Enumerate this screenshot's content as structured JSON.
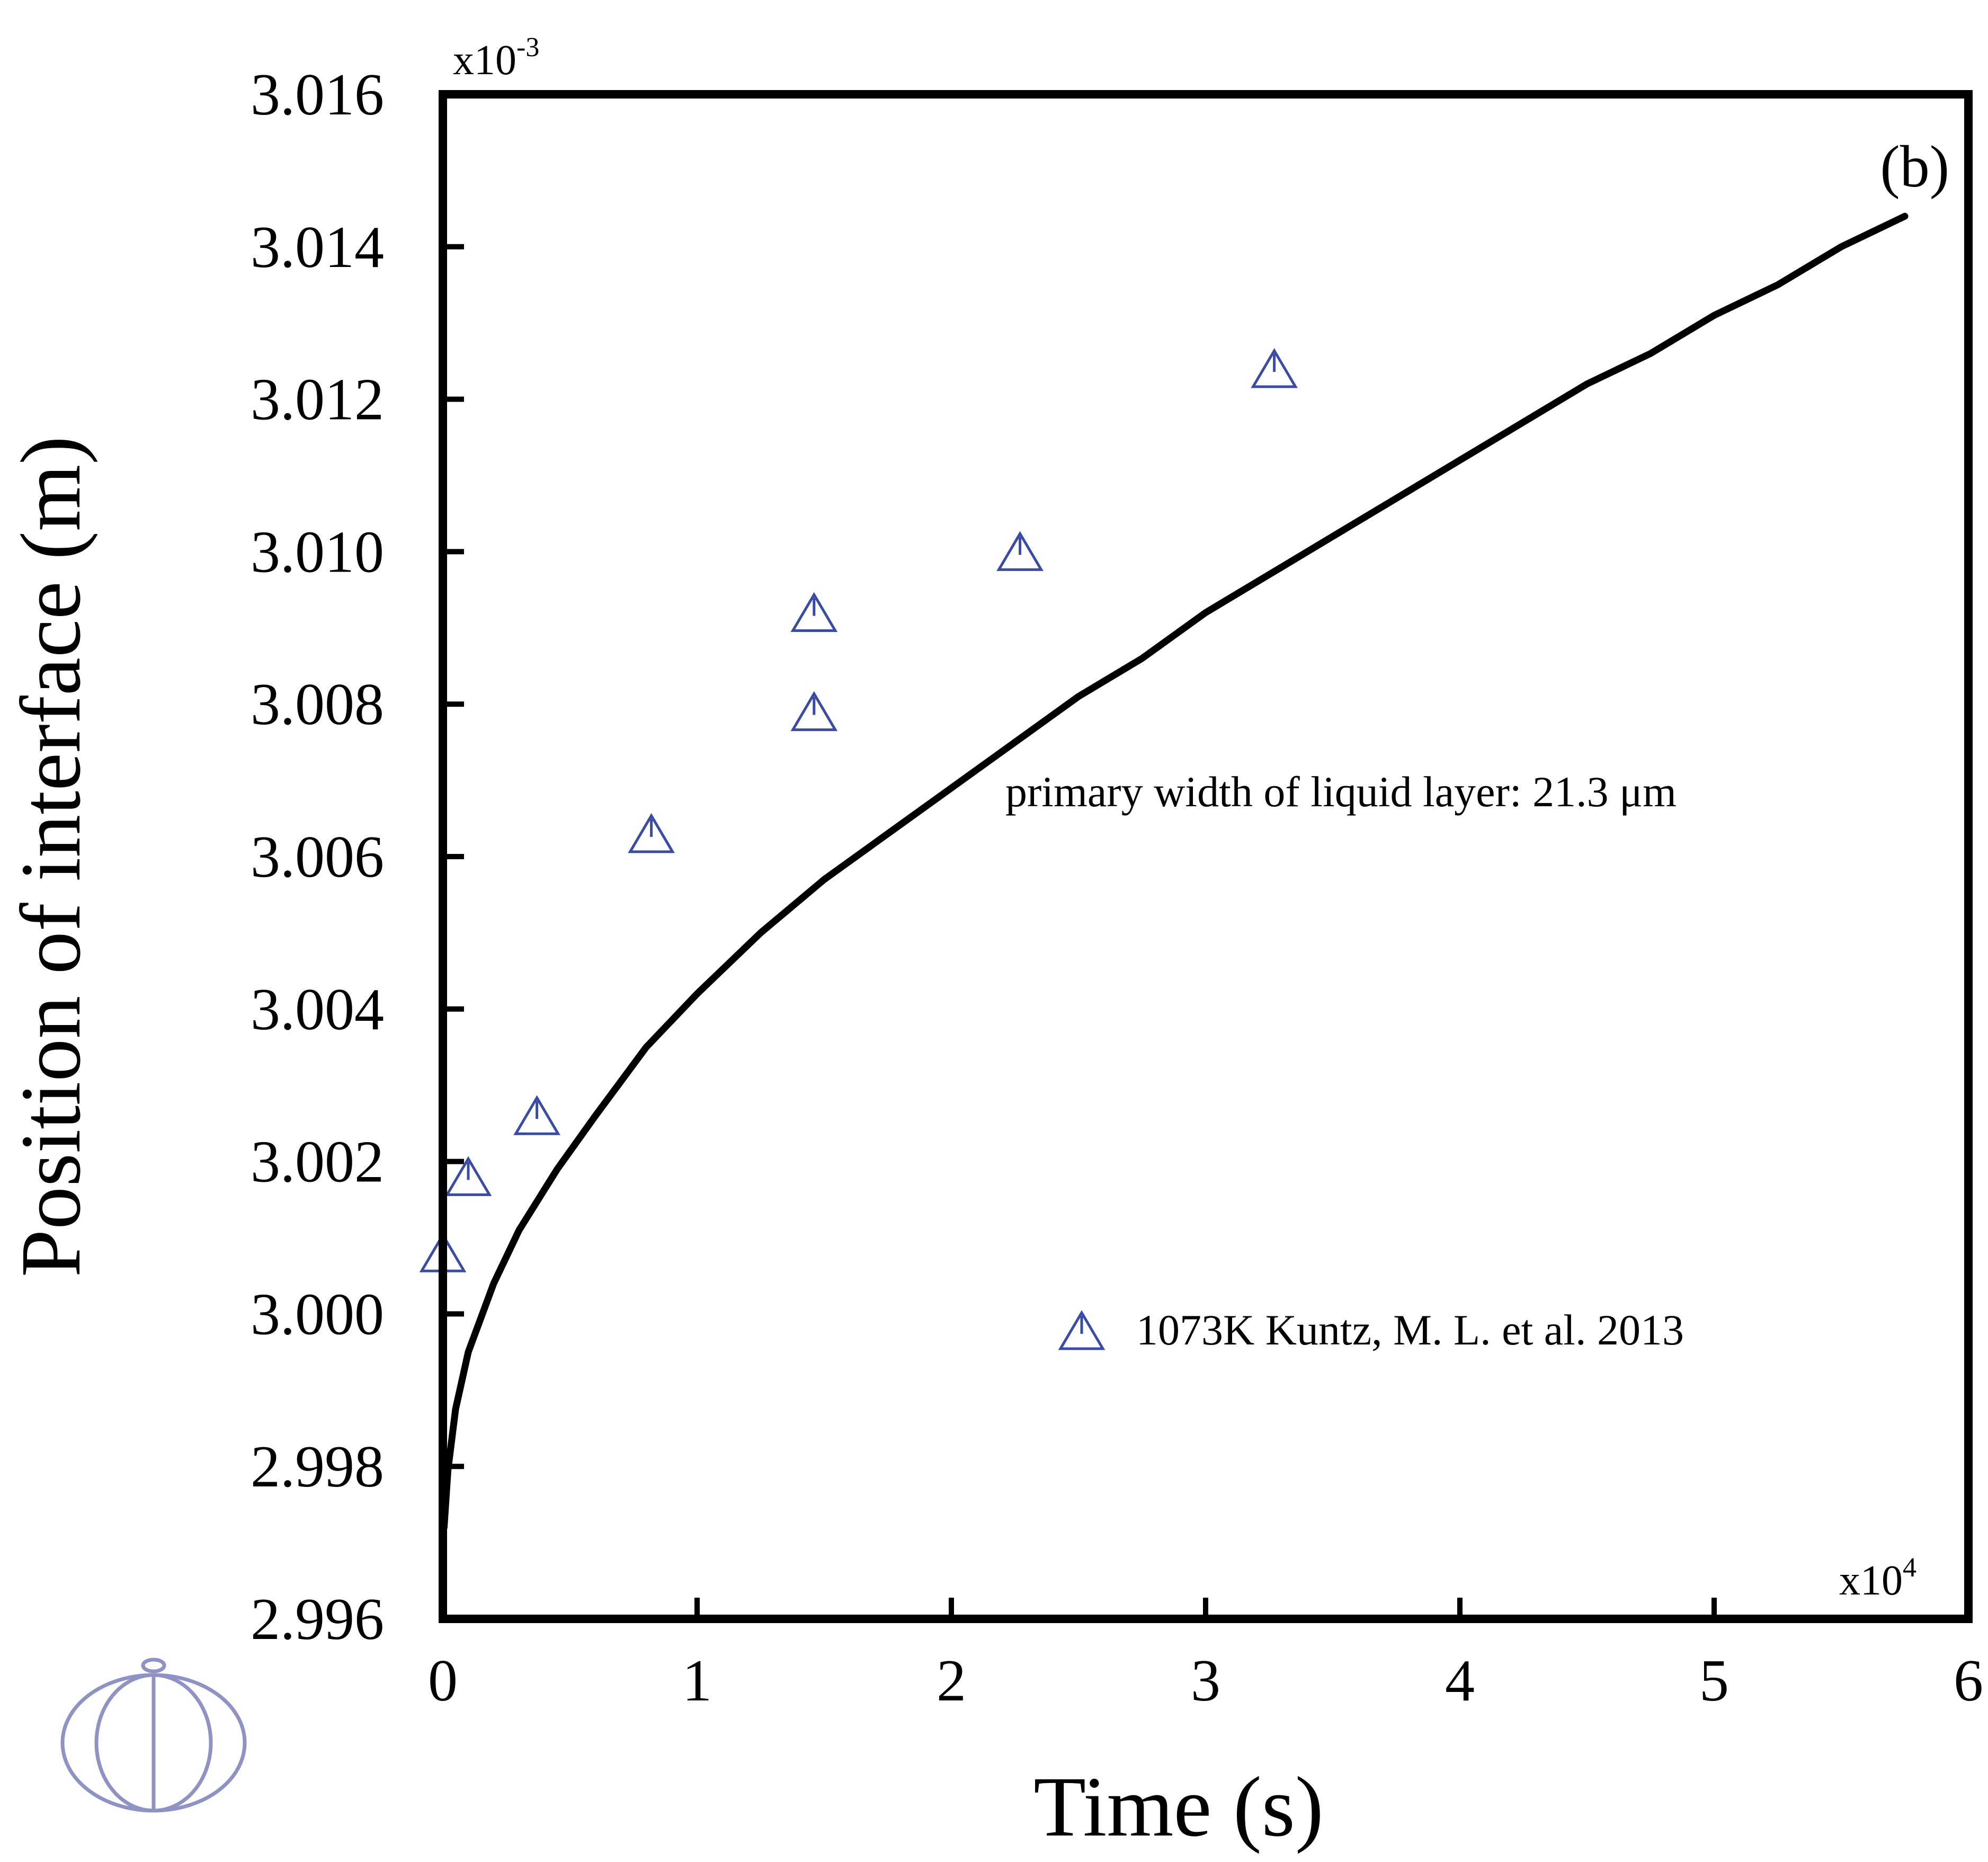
{
  "chart_data": {
    "type": "scatter",
    "panel_label": "(b)",
    "xlabel": "Time (s)",
    "ylabel": "Position of interface (m)",
    "x_multiplier": {
      "base": "x10",
      "exp": "4"
    },
    "y_multiplier": {
      "base": "x10",
      "exp": "-3"
    },
    "xlim": [
      0,
      6
    ],
    "ylim": [
      2.996,
      3.016
    ],
    "x_ticks": [
      "0",
      "1",
      "2",
      "3",
      "4",
      "5",
      "6"
    ],
    "y_ticks": [
      "2.996",
      "2.998",
      "3.000",
      "3.002",
      "3.004",
      "3.006",
      "3.008",
      "3.010",
      "3.012",
      "3.014",
      "3.016"
    ],
    "annotation": "primary width of liquid layer: 21.3 μm",
    "grid": false,
    "legend_position": "lower-right",
    "colors": {
      "frame": "#000000",
      "simulation": "#000000",
      "experiment": "#3a4ba3",
      "logo": "#8e93c4"
    },
    "series": [
      {
        "kind": "line",
        "x": [
          0.005,
          0.02,
          0.05,
          0.1,
          0.2,
          0.3,
          0.45,
          0.6,
          0.8,
          1.0,
          1.25,
          1.5,
          1.75,
          2.0,
          2.25,
          2.5,
          2.75,
          3.0,
          3.25,
          3.5,
          3.75,
          4.0,
          4.25,
          4.5,
          4.75,
          5.0,
          5.25,
          5.5,
          5.75
        ],
        "y": [
          2.9972,
          2.99795,
          2.99875,
          2.9995,
          3.0004,
          3.0011,
          3.0019,
          3.0026,
          3.0035,
          3.0042,
          3.005,
          3.0057,
          3.0063,
          3.0069,
          3.0075,
          3.0081,
          3.0086,
          3.0092,
          3.0097,
          3.0102,
          3.0107,
          3.0112,
          3.0117,
          3.0122,
          3.0126,
          3.0131,
          3.0135,
          3.014,
          3.0144
        ]
      },
      {
        "name": "1073K Kuntz, M. L. et al. 2013",
        "kind": "markers",
        "marker": "triangle",
        "points": [
          {
            "x": 0.0,
            "y": 3.0008
          },
          {
            "x": 0.1,
            "y": 3.0018
          },
          {
            "x": 0.37,
            "y": 3.0026
          },
          {
            "x": 0.82,
            "y": 3.0063
          },
          {
            "x": 1.46,
            "y": 3.0079
          },
          {
            "x": 1.46,
            "y": 3.0092
          },
          {
            "x": 2.27,
            "y": 3.01
          },
          {
            "x": 3.27,
            "y": 3.0124
          }
        ]
      }
    ]
  }
}
